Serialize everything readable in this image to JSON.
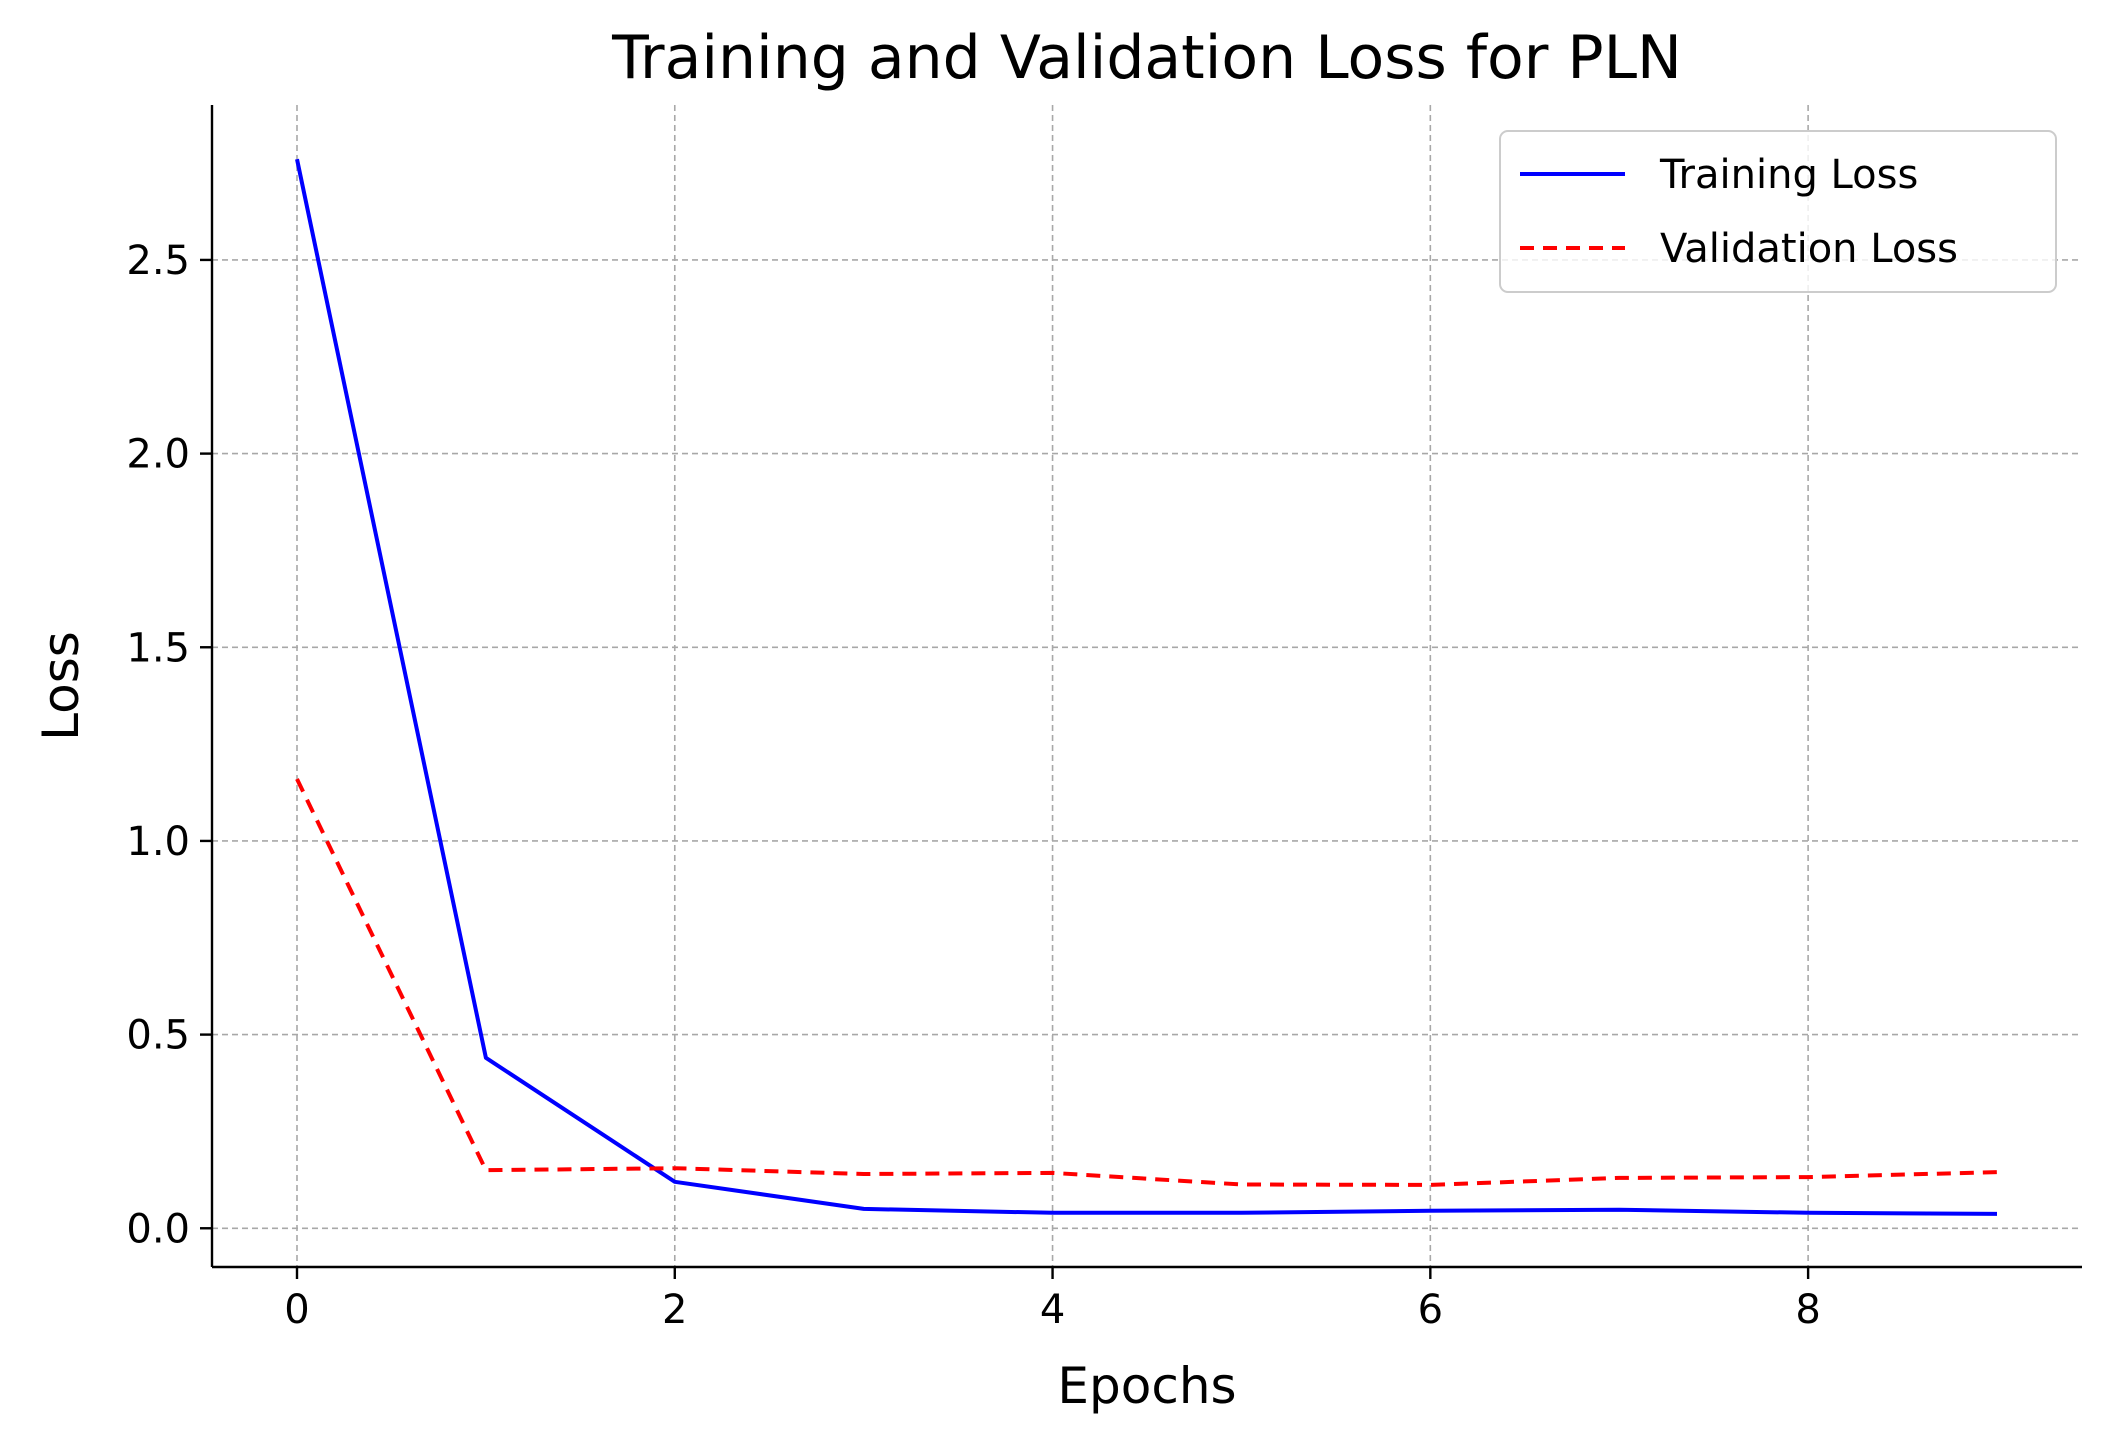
{
  "chart_data": {
    "type": "line",
    "title": "Training and Validation Loss for PLN",
    "xlabel": "Epochs",
    "ylabel": "Loss",
    "xlim": [
      -0.45,
      9.45
    ],
    "ylim": [
      -0.1,
      2.9
    ],
    "xticks": [
      0,
      2,
      4,
      6,
      8
    ],
    "xtick_labels": [
      "0",
      "2",
      "4",
      "6",
      "8"
    ],
    "yticks": [
      0.0,
      0.5,
      1.0,
      1.5,
      2.0,
      2.5
    ],
    "ytick_labels": [
      "0.0",
      "0.5",
      "1.0",
      "1.5",
      "2.0",
      "2.5"
    ],
    "grid": true,
    "legend_position": "top-right",
    "x": [
      0,
      1,
      2,
      3,
      4,
      5,
      6,
      7,
      8,
      9
    ],
    "series": [
      {
        "name": "Training Loss",
        "color": "#0000ff",
        "style": "solid",
        "values": [
          2.76,
          0.44,
          0.12,
          0.05,
          0.04,
          0.04,
          0.045,
          0.048,
          0.04,
          0.037
        ]
      },
      {
        "name": "Validation Loss",
        "color": "#ff0000",
        "style": "dashed",
        "values": [
          1.16,
          0.15,
          0.155,
          0.14,
          0.143,
          0.113,
          0.112,
          0.13,
          0.132,
          0.145
        ]
      }
    ]
  }
}
